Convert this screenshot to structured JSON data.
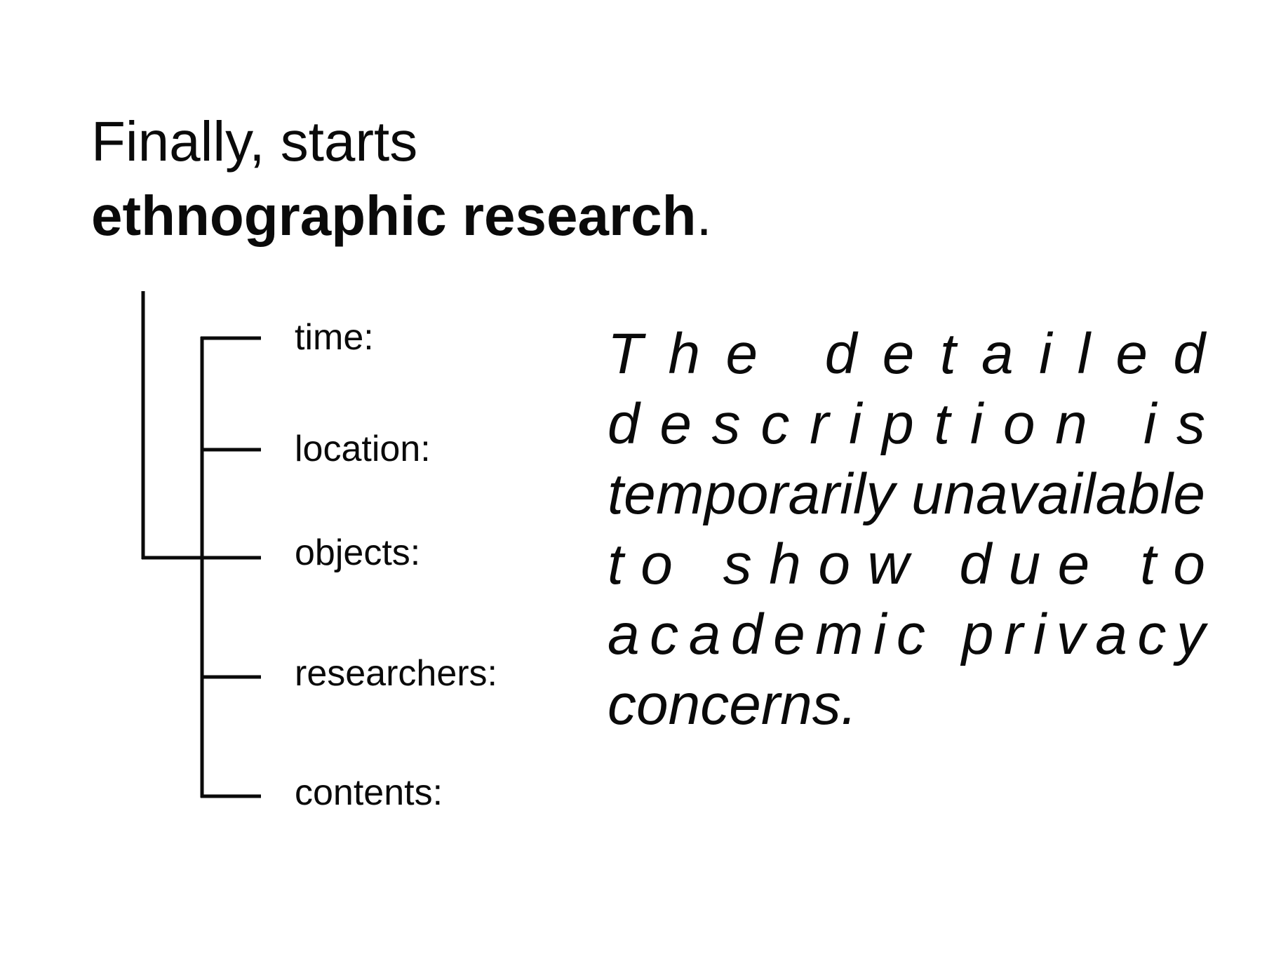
{
  "heading": {
    "line1": "Finally, starts",
    "line2_bold": "ethnographic research",
    "line2_end": "."
  },
  "fields": [
    {
      "label": "time:"
    },
    {
      "label": "location:"
    },
    {
      "label": "objects:"
    },
    {
      "label": "researchers:"
    },
    {
      "label": "contents:"
    }
  ],
  "description": {
    "lines": [
      "The detailed",
      "description is",
      "temporarily unavailable",
      "to show due to",
      "academic privacy",
      "concerns."
    ]
  }
}
